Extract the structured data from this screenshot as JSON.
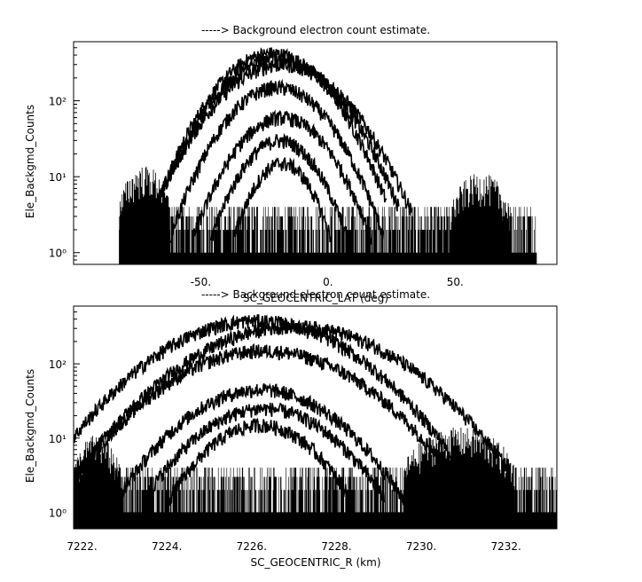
{
  "chart_data": [
    {
      "type": "line",
      "title": "-----> Background electron count estimate.",
      "xlabel": "SC_GEOCENTRIC_LAT (deg)",
      "ylabel": "Ele_Backgmd_Counts",
      "xlim": [
        -100,
        90
      ],
      "ylim": [
        0.7,
        600
      ],
      "yscale": "log",
      "x_ticks": [
        -50,
        0,
        50
      ],
      "x_tick_labels": [
        "-50.",
        "0.",
        "50."
      ],
      "y_ticks": [
        1,
        10,
        100
      ],
      "y_tick_labels": [
        "10⁰",
        "10¹",
        "10²"
      ],
      "noise_floor": {
        "x_range": [
          -82,
          82
        ],
        "values": [
          1,
          2,
          3,
          4
        ]
      },
      "series": [
        {
          "type": "hump",
          "center": -22,
          "width": 15,
          "peak": 420
        },
        {
          "type": "hump",
          "center": -20,
          "width": 16,
          "peak": 350
        },
        {
          "type": "hump",
          "center": -18,
          "width": 17,
          "peak": 300
        },
        {
          "type": "hump",
          "center": -20,
          "width": 14,
          "peak": 150
        },
        {
          "type": "hump",
          "center": -18,
          "width": 13,
          "peak": 60
        },
        {
          "type": "hump",
          "center": -19,
          "width": 11,
          "peak": 30
        },
        {
          "type": "hump",
          "center": -18,
          "width": 9,
          "peak": 15
        },
        {
          "type": "patch",
          "x_range": [
            -82,
            -62
          ],
          "level": 10
        },
        {
          "type": "patch",
          "x_range": [
            48,
            72
          ],
          "level": 8
        }
      ]
    },
    {
      "type": "line",
      "title": "-----> Background electron count estimate.",
      "xlabel": "SC_GEOCENTRIC_R (km)",
      "ylabel": "Ele_Backgmd_Counts",
      "xlim": [
        7221.8,
        7233.2
      ],
      "ylim": [
        0.6,
        600
      ],
      "yscale": "log",
      "x_ticks": [
        7222,
        7224,
        7226,
        7228,
        7230,
        7232
      ],
      "x_tick_labels": [
        "7222.",
        "7224.",
        "7226.",
        "7228.",
        "7230.",
        "7232."
      ],
      "y_ticks": [
        1,
        10,
        100
      ],
      "y_tick_labels": [
        "10⁰",
        "10¹",
        "10²"
      ],
      "noise_floor": {
        "x_range": [
          7221.8,
          7233.2
        ],
        "values": [
          1,
          2,
          3,
          4
        ]
      },
      "series": [
        {
          "type": "hump",
          "center": 7226.1,
          "width": 1.6,
          "peak": 380
        },
        {
          "type": "hump",
          "center": 7227.0,
          "width": 1.7,
          "peak": 320
        },
        {
          "type": "hump",
          "center": 7226.3,
          "width": 1.6,
          "peak": 150
        },
        {
          "type": "hump",
          "center": 7226.2,
          "width": 1.3,
          "peak": 45
        },
        {
          "type": "hump",
          "center": 7226.3,
          "width": 1.2,
          "peak": 25
        },
        {
          "type": "hump",
          "center": 7226.2,
          "width": 1.0,
          "peak": 15
        },
        {
          "type": "patch",
          "x_range": [
            7221.8,
            7222.9
          ],
          "level": 8
        },
        {
          "type": "patch",
          "x_range": [
            7229.6,
            7232.2
          ],
          "level": 10
        }
      ]
    }
  ]
}
